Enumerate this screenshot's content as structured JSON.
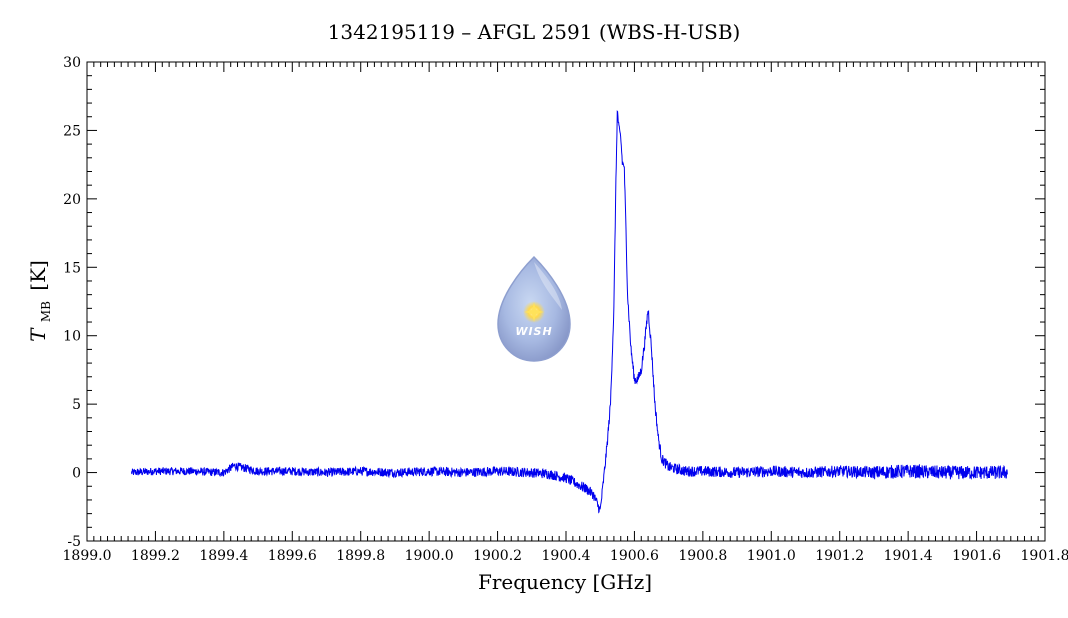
{
  "chart_data": {
    "type": "line",
    "title": "1342195119 – AFGL 2591 (WBS-H-USB)",
    "xlabel": "Frequency [GHz]",
    "ylabel_main": "T",
    "ylabel_sub": "MB",
    "ylabel_unit": "[K]",
    "xlim": [
      1899.0,
      1901.8
    ],
    "ylim": [
      -5,
      30
    ],
    "x_ticks": [
      1899.0,
      1899.2,
      1899.4,
      1899.6,
      1899.8,
      1900.0,
      1900.2,
      1900.4,
      1900.6,
      1900.8,
      1901.0,
      1901.2,
      1901.4,
      1901.6,
      1901.8
    ],
    "x_tick_labels": [
      "1899.0",
      "1899.2",
      "1899.4",
      "1899.6",
      "1899.8",
      "1900.0",
      "1900.2",
      "1900.4",
      "1900.6",
      "1900.8",
      "1901.0",
      "1901.2",
      "1901.4",
      "1901.6",
      "1901.8"
    ],
    "y_ticks": [
      -5,
      0,
      5,
      10,
      15,
      20,
      25,
      30
    ],
    "y_tick_labels": [
      "-5",
      "0",
      "5",
      "10",
      "15",
      "20",
      "25",
      "30"
    ],
    "grid": false,
    "line_color": "#0000ee",
    "series": [
      {
        "x": [
          1899.13,
          1899.2,
          1899.3,
          1899.4,
          1899.43,
          1899.5,
          1899.6,
          1899.7,
          1899.8,
          1899.9,
          1900.0,
          1900.1,
          1900.2,
          1900.3,
          1900.35,
          1900.4,
          1900.43,
          1900.46,
          1900.48,
          1900.5,
          1900.51,
          1900.52,
          1900.53,
          1900.54,
          1900.545,
          1900.55,
          1900.555,
          1900.56,
          1900.565,
          1900.57,
          1900.575,
          1900.58,
          1900.59,
          1900.6,
          1900.61,
          1900.62,
          1900.63,
          1900.64,
          1900.65,
          1900.66,
          1900.67,
          1900.68,
          1900.7,
          1900.75,
          1900.8,
          1900.9,
          1901.0,
          1901.1,
          1901.2,
          1901.3,
          1901.4,
          1901.5,
          1901.6,
          1901.69
        ],
        "y": [
          0.0,
          0.1,
          0.1,
          0.0,
          0.5,
          0.1,
          0.1,
          0.0,
          0.1,
          0.0,
          0.1,
          0.0,
          0.1,
          0.0,
          -0.1,
          -0.4,
          -0.8,
          -1.2,
          -1.6,
          -2.8,
          -0.5,
          2.0,
          5.0,
          12.0,
          20.0,
          26.5,
          25.0,
          24.5,
          22.5,
          22.5,
          18.0,
          13.0,
          9.0,
          6.8,
          6.8,
          7.5,
          9.5,
          12.0,
          9.0,
          5.0,
          2.5,
          1.0,
          0.4,
          0.1,
          0.1,
          0.0,
          0.1,
          0.0,
          0.1,
          0.0,
          0.1,
          0.0,
          0.0,
          0.0
        ]
      }
    ]
  },
  "logo": {
    "text": "WISH"
  }
}
